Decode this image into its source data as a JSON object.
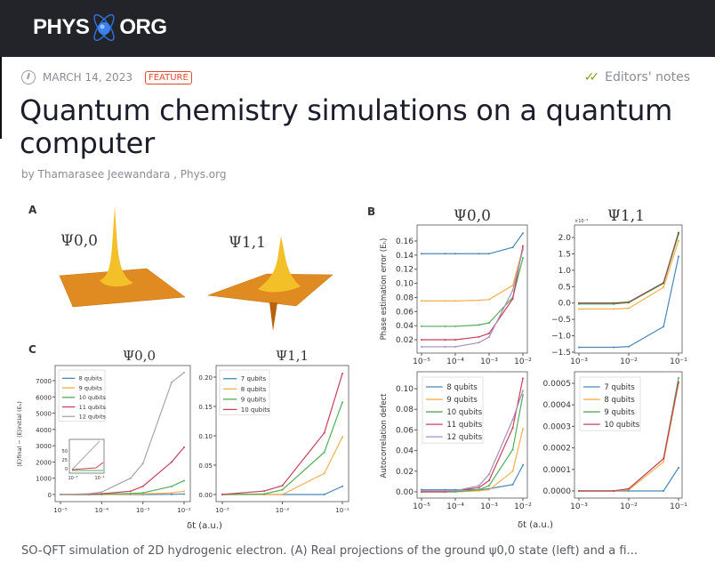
{
  "header": {
    "logo_left": "PHYS",
    "logo_right": "ORG"
  },
  "article": {
    "date": "MARCH 14, 2023",
    "badge": "FEATURE",
    "editors_notes": "Editors' notes",
    "title": "Quantum chemistry simulations on a quantum computer",
    "byline": "by Thamarasee Jeewandara , Phys.org",
    "caption": "SO-QFT simulation of 2D hydrogenic electron. (A) Real projections of the ground ψ0,0 state (left) and a fi..."
  },
  "figure": {
    "panel_labels": [
      "A",
      "B",
      "C"
    ],
    "surface_titles": [
      "Ψ0,0",
      "Ψ1,1"
    ],
    "surface_color": "#e8941f",
    "xlabel": "δt (a.u.)",
    "inset": {
      "yticks": [
        "0",
        "25",
        "50"
      ],
      "xticks": [
        "10⁻⁵",
        "10⁻⁴"
      ]
    }
  },
  "chart_data": [
    {
      "id": "C-psi00",
      "type": "line",
      "title": "Ψ0,0",
      "ylabel": "⟨E⟩final − ⟨E⟩initial (Eₕ)",
      "xscale": "log",
      "x": [
        1e-05,
        5e-05,
        0.0001,
        0.0005,
        0.001,
        0.005,
        0.01
      ],
      "xticks": [
        [
          1e-05,
          "10⁻⁵"
        ],
        [
          0.0001,
          "10⁻⁴"
        ],
        [
          0.001,
          "10⁻³"
        ],
        [
          0.01,
          "10⁻²"
        ]
      ],
      "yticks": [
        [
          0,
          "0"
        ],
        [
          1000,
          "1000"
        ],
        [
          2000,
          "2000"
        ],
        [
          3000,
          "3000"
        ],
        [
          4000,
          "4000"
        ],
        [
          5000,
          "5000"
        ],
        [
          6000,
          "6000"
        ],
        [
          7000,
          "7000"
        ]
      ],
      "legend": "top-left",
      "series": [
        {
          "name": "8 qubits",
          "color": "#4a86b8",
          "values": [
            0,
            0,
            0,
            0,
            0,
            10,
            30
          ]
        },
        {
          "name": "9 qubits",
          "color": "#f4b04a",
          "values": [
            0,
            0,
            0,
            20,
            40,
            100,
            200
          ]
        },
        {
          "name": "10 qubits",
          "color": "#4fae5a",
          "values": [
            0,
            0,
            20,
            60,
            100,
            500,
            850
          ]
        },
        {
          "name": "11 qubits",
          "color": "#c8415a",
          "values": [
            0,
            20,
            50,
            200,
            500,
            2000,
            2900
          ]
        },
        {
          "name": "12 qubits",
          "color": "#a8a4ac",
          "values": [
            0,
            50,
            150,
            1000,
            1900,
            6900,
            7500
          ]
        }
      ]
    },
    {
      "id": "C-psi11",
      "type": "line",
      "title": "Ψ1,1",
      "ylabel": "",
      "xscale": "log",
      "x": [
        0.001,
        0.005,
        0.01,
        0.05,
        0.1
      ],
      "xticks": [
        [
          0.001,
          "10⁻³"
        ],
        [
          0.01,
          "10⁻²"
        ],
        [
          0.1,
          "10⁻¹"
        ]
      ],
      "yticks": [
        [
          0,
          "0.00"
        ],
        [
          0.05,
          "0.05"
        ],
        [
          0.1,
          "0.10"
        ],
        [
          0.15,
          "0.15"
        ],
        [
          0.2,
          "0.20"
        ]
      ],
      "legend": "top-left",
      "series": [
        {
          "name": "7 qubits",
          "color": "#4a86b8",
          "values": [
            0,
            0,
            0,
            0,
            0.014
          ]
        },
        {
          "name": "8 qubits",
          "color": "#f4b04a",
          "values": [
            0,
            0,
            0,
            0.036,
            0.098
          ]
        },
        {
          "name": "9 qubits",
          "color": "#4fae5a",
          "values": [
            0,
            0.001,
            0.008,
            0.072,
            0.157
          ]
        },
        {
          "name": "10 qubits",
          "color": "#c8415a",
          "values": [
            0,
            0.006,
            0.015,
            0.105,
            0.206
          ]
        }
      ]
    },
    {
      "id": "B-phase-psi00",
      "type": "line",
      "title": "Ψ0,0",
      "ylabel": "Phase estimation error (Eₕ)",
      "xscale": "log",
      "x": [
        1e-05,
        5e-05,
        0.0001,
        0.0005,
        0.001,
        0.005,
        0.01
      ],
      "xticks": [
        [
          1e-05,
          "10⁻⁵"
        ],
        [
          0.0001,
          "10⁻⁴"
        ],
        [
          0.001,
          "10⁻³"
        ],
        [
          0.01,
          "10⁻²"
        ]
      ],
      "yticks": [
        [
          0.02,
          "0.02"
        ],
        [
          0.04,
          "0.04"
        ],
        [
          0.06,
          "0.06"
        ],
        [
          0.08,
          "0.08"
        ],
        [
          0.1,
          "0.10"
        ],
        [
          0.12,
          "0.12"
        ],
        [
          0.14,
          "0.14"
        ],
        [
          0.16,
          "0.16"
        ]
      ],
      "series": [
        {
          "name": "8 qubits",
          "color": "#4a86b8",
          "values": [
            0.142,
            0.142,
            0.142,
            0.142,
            0.142,
            0.151,
            0.171
          ]
        },
        {
          "name": "9 qubits",
          "color": "#f4b04a",
          "values": [
            0.075,
            0.075,
            0.075,
            0.076,
            0.077,
            0.097,
            0.15
          ]
        },
        {
          "name": "10 qubits",
          "color": "#4fae5a",
          "values": [
            0.039,
            0.039,
            0.039,
            0.041,
            0.044,
            0.08,
            0.136
          ]
        },
        {
          "name": "11 qubits",
          "color": "#c8415a",
          "values": [
            0.02,
            0.02,
            0.02,
            0.024,
            0.029,
            0.078,
            0.153
          ]
        },
        {
          "name": "12 qubits",
          "color": "#a48fc0",
          "values": [
            0.01,
            0.01,
            0.01,
            0.016,
            0.024,
            0.09,
            0.148
          ]
        }
      ]
    },
    {
      "id": "B-phase-psi11",
      "type": "line",
      "title": "Ψ1,1",
      "ylabel": "",
      "multiplier": "×10⁻⁴",
      "xscale": "log",
      "x": [
        0.001,
        0.005,
        0.01,
        0.05,
        0.1
      ],
      "xticks": [
        [
          0.001,
          "10⁻³"
        ],
        [
          0.01,
          "10⁻²"
        ],
        [
          0.1,
          "10⁻¹"
        ]
      ],
      "yticks": [
        [
          -1.5,
          "−1.5"
        ],
        [
          -1,
          "−1.0"
        ],
        [
          -0.5,
          "−0.5"
        ],
        [
          0,
          "0.0"
        ],
        [
          0.5,
          "0.5"
        ],
        [
          1,
          "1.0"
        ],
        [
          1.5,
          "1.5"
        ],
        [
          2,
          "2.0"
        ]
      ],
      "series": [
        {
          "name": "7 qubits",
          "color": "#4a86b8",
          "values": [
            -1.35,
            -1.35,
            -1.33,
            -0.72,
            1.42
          ]
        },
        {
          "name": "8 qubits",
          "color": "#f4b04a",
          "values": [
            -0.18,
            -0.18,
            -0.16,
            0.48,
            1.9
          ]
        },
        {
          "name": "9 qubits",
          "color": "#4fae5a",
          "values": [
            -0.03,
            -0.03,
            0.01,
            0.6,
            2.1
          ]
        },
        {
          "name": "10 qubits",
          "color": "#8a4a3a",
          "values": [
            0,
            0,
            0.03,
            0.62,
            2.15
          ]
        }
      ]
    },
    {
      "id": "B-autocorr-psi00",
      "type": "line",
      "title": "",
      "ylabel": "Autocorrelation defect",
      "xscale": "log",
      "x": [
        1e-05,
        5e-05,
        0.0001,
        0.0005,
        0.001,
        0.005,
        0.01
      ],
      "xticks": [
        [
          1e-05,
          "10⁻⁵"
        ],
        [
          0.0001,
          "10⁻⁴"
        ],
        [
          0.001,
          "10⁻³"
        ],
        [
          0.01,
          "10⁻²"
        ]
      ],
      "yticks": [
        [
          0,
          "0.00"
        ],
        [
          0.02,
          "0.02"
        ],
        [
          0.04,
          "0.04"
        ],
        [
          0.06,
          "0.06"
        ],
        [
          0.08,
          "0.08"
        ],
        [
          0.1,
          "0.10"
        ]
      ],
      "legend": "top-left",
      "series": [
        {
          "name": "8 qubits",
          "color": "#4a86b8",
          "values": [
            0.002,
            0.002,
            0.002,
            0.002,
            0.003,
            0.007,
            0.026
          ]
        },
        {
          "name": "9 qubits",
          "color": "#f4b04a",
          "values": [
            0,
            0,
            0,
            0.001,
            0.002,
            0.02,
            0.061
          ]
        },
        {
          "name": "10 qubits",
          "color": "#4fae5a",
          "values": [
            0,
            0,
            0,
            0.002,
            0.006,
            0.041,
            0.094
          ]
        },
        {
          "name": "11 qubits",
          "color": "#c8415a",
          "values": [
            0,
            0,
            0.001,
            0.004,
            0.011,
            0.062,
            0.11
          ]
        },
        {
          "name": "12 qubits",
          "color": "#a48fc0",
          "values": [
            0.001,
            0.001,
            0.001,
            0.006,
            0.017,
            0.07,
            0.098
          ]
        }
      ]
    },
    {
      "id": "B-autocorr-psi11",
      "type": "line",
      "title": "",
      "ylabel": "",
      "xscale": "log",
      "x": [
        0.001,
        0.005,
        0.01,
        0.05,
        0.1
      ],
      "xticks": [
        [
          0.001,
          "10⁻³"
        ],
        [
          0.01,
          "10⁻²"
        ],
        [
          0.1,
          "10⁻¹"
        ]
      ],
      "yticks": [
        [
          0,
          "0.0000"
        ],
        [
          0.0001,
          "0.0001"
        ],
        [
          0.0002,
          "0.0002"
        ],
        [
          0.0003,
          "0.0003"
        ],
        [
          0.0004,
          "0.0004"
        ],
        [
          0.0005,
          "0.0005"
        ]
      ],
      "legend": "top-left",
      "series": [
        {
          "name": "7 qubits",
          "color": "#4a86b8",
          "values": [
            0,
            0,
            0,
            0,
            0.000108
          ]
        },
        {
          "name": "8 qubits",
          "color": "#f4b04a",
          "values": [
            0,
            0,
            5e-06,
            0.000135,
            0.0005
          ]
        },
        {
          "name": "9 qubits",
          "color": "#4fae5a",
          "values": [
            0,
            0,
            1e-05,
            0.00015,
            0.000525
          ]
        },
        {
          "name": "10 qubits",
          "color": "#c8415a",
          "values": [
            0,
            0,
            1e-05,
            0.00015,
            0.000505
          ]
        }
      ]
    }
  ]
}
